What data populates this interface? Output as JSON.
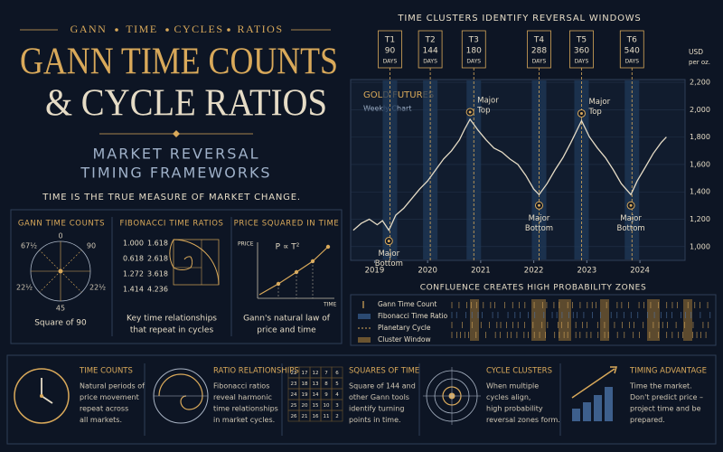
{
  "header": {
    "topics": [
      "GANN",
      "TIME",
      "CYCLES",
      "RATIOS"
    ],
    "title_line1": "GANN TIME COUNTS",
    "title_line2": "& CYCLE RATIOS",
    "subtitle_line1": "MARKET REVERSAL",
    "subtitle_line2": "TIMING FRAMEWORKS",
    "tagline": "TIME IS THE TRUE MEASURE OF MARKET CHANGE."
  },
  "panels": [
    {
      "title": "GANN TIME COUNTS",
      "labels": [
        "0",
        "90",
        "67½",
        "22½",
        "22½",
        "45"
      ],
      "caption": [
        "Square of 90"
      ]
    },
    {
      "title": "FIBONACCI TIME RATIOS",
      "ratios": [
        [
          "1.000",
          "1.618"
        ],
        [
          "0.618",
          "2.618"
        ],
        [
          "1.272",
          "3.618"
        ],
        [
          "1.414",
          "4.236"
        ]
      ],
      "caption": [
        "Key time relationships",
        "that repeat in cycles"
      ]
    },
    {
      "title": "PRICE SQUARED IN TIME",
      "y_label": "PRICE",
      "formula": "P ∝ T²",
      "x_label": "TIME",
      "caption": [
        "Gann's natural law of",
        "price and time"
      ]
    }
  ],
  "chart_data": {
    "type": "line",
    "title": "TIME CLUSTERS IDENTIFY REVERSAL WINDOWS",
    "label": "GOLD FUTURES",
    "sublabel": "Weekly Chart",
    "unit": [
      "USD",
      "per oz."
    ],
    "color": "#e6dcc6",
    "x": [
      2018.6,
      2018.75,
      2018.9,
      2019.05,
      2019.15,
      2019.27,
      2019.4,
      2019.55,
      2019.7,
      2019.85,
      2020.0,
      2020.15,
      2020.3,
      2020.45,
      2020.6,
      2020.7,
      2020.8,
      2020.95,
      2021.1,
      2021.25,
      2021.4,
      2021.55,
      2021.7,
      2021.85,
      2022.0,
      2022.1,
      2022.25,
      2022.4,
      2022.55,
      2022.7,
      2022.9,
      2023.05,
      2023.2,
      2023.35,
      2023.5,
      2023.65,
      2023.83,
      2023.95,
      2024.1,
      2024.25,
      2024.4,
      2024.5
    ],
    "values": [
      1120,
      1170,
      1200,
      1160,
      1190,
      1120,
      1230,
      1280,
      1350,
      1420,
      1480,
      1560,
      1640,
      1700,
      1780,
      1860,
      1930,
      1850,
      1780,
      1720,
      1690,
      1640,
      1600,
      1520,
      1420,
      1380,
      1460,
      1560,
      1650,
      1760,
      1920,
      1800,
      1720,
      1650,
      1560,
      1460,
      1380,
      1480,
      1580,
      1680,
      1760,
      1800
    ],
    "xlim": [
      2018.55,
      2024.85
    ],
    "xticks": [
      2019,
      2020,
      2021,
      2022,
      2023,
      2024
    ],
    "ylim": [
      900,
      2220
    ],
    "yticks": [
      {
        "value": 1000,
        "label": "1,000"
      },
      {
        "value": 1200,
        "label": "1,200"
      },
      {
        "value": 1400,
        "label": "1,400"
      },
      {
        "value": 1600,
        "label": "1,600"
      },
      {
        "value": 1800,
        "label": "1,800"
      },
      {
        "value": 2000,
        "label": "2,000"
      },
      {
        "value": 2200,
        "label": "2,200"
      }
    ],
    "grid": true,
    "days_unit": "DAYS",
    "time_windows": [
      {
        "label": "T1",
        "days": 90,
        "x": 2019.29
      },
      {
        "label": "T2",
        "days": 144,
        "x": 2020.05
      },
      {
        "label": "T3",
        "days": 180,
        "x": 2020.87
      },
      {
        "label": "T4",
        "days": 288,
        "x": 2022.1
      },
      {
        "label": "T5",
        "days": 360,
        "x": 2022.9
      },
      {
        "label": "T6",
        "days": 540,
        "x": 2023.85
      }
    ],
    "annotations": [
      {
        "label": [
          "Major",
          "Bottom"
        ],
        "x": 2019.27,
        "y": 1120
      },
      {
        "label": [
          "Major",
          "Top"
        ],
        "x": 2020.8,
        "y": 1930
      },
      {
        "label": [
          "Major",
          "Bottom"
        ],
        "x": 2022.1,
        "y": 1380
      },
      {
        "label": [
          "Major",
          "Top"
        ],
        "x": 2022.9,
        "y": 1920
      },
      {
        "label": [
          "Major",
          "Bottom"
        ],
        "x": 2023.83,
        "y": 1380
      }
    ]
  },
  "confluence": {
    "title": "CONFLUENCE CREATES HIGH PROBABILITY ZONES",
    "legend": [
      "Gann Time Count",
      "Fibonacci Time Ratio",
      "Planetary Cycle",
      "Cluster Window"
    ]
  },
  "square_grid": [
    [
      "22",
      "17",
      "12",
      "7",
      "6"
    ],
    [
      "23",
      "18",
      "13",
      "8",
      "5"
    ],
    [
      "24",
      "19",
      "14",
      "9",
      "4"
    ],
    [
      "25",
      "20",
      "15",
      "10",
      "3"
    ],
    [
      "26",
      "21",
      "16",
      "11",
      "2"
    ]
  ],
  "features": [
    {
      "title": "TIME COUNTS",
      "text": [
        "Natural periods of",
        "price movement",
        "repeat across",
        "all markets."
      ]
    },
    {
      "title": "RATIO RELATIONSHIPS",
      "text": [
        "Fibonacci ratios",
        "reveal harmonic",
        "time relationships",
        "in market cycles."
      ]
    },
    {
      "title": "SQUARES OF TIME",
      "text": [
        "Square of 144 and",
        "other Gann tools",
        "identify turning",
        "points in time."
      ]
    },
    {
      "title": "CYCLE CLUSTERS",
      "text": [
        "When multiple",
        "cycles align,",
        "high probability",
        "reversal zones form."
      ]
    },
    {
      "title": "TIMING ADVANTAGE",
      "text": [
        "Time the market.",
        "Don't predict price –",
        "project time and be",
        "prepared."
      ]
    }
  ]
}
